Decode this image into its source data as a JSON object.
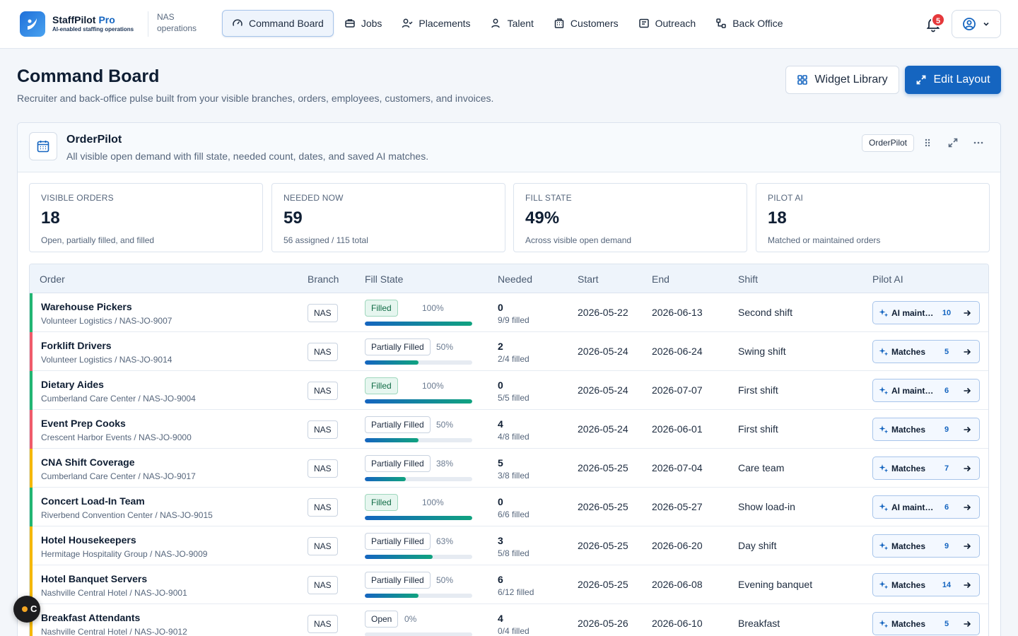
{
  "brand": {
    "name": "StaffPilot",
    "pro": "Pro",
    "tagline": "AI-enabled staffing operations"
  },
  "org": {
    "line1": "NAS",
    "line2": "operations"
  },
  "nav": [
    {
      "label": "Command Board",
      "icon": "gauge-icon"
    },
    {
      "label": "Jobs",
      "icon": "briefcase-icon"
    },
    {
      "label": "Placements",
      "icon": "user-check-icon"
    },
    {
      "label": "Talent",
      "icon": "users-icon"
    },
    {
      "label": "Customers",
      "icon": "building-icon"
    },
    {
      "label": "Outreach",
      "icon": "message-icon"
    },
    {
      "label": "Back Office",
      "icon": "workflow-icon"
    }
  ],
  "notifications": {
    "count": "5"
  },
  "page": {
    "title": "Command Board",
    "subtitle": "Recruiter and back-office pulse built from your visible branches, orders, employees, customers, and invoices.",
    "widget_library": "Widget Library",
    "edit_layout": "Edit Layout"
  },
  "widget": {
    "title": "OrderPilot",
    "subtitle": "All visible open demand with fill state, needed count, dates, and saved AI matches.",
    "tag": "OrderPilot"
  },
  "stats": [
    {
      "label": "VISIBLE ORDERS",
      "value": "18",
      "note": "Open, partially filled, and filled"
    },
    {
      "label": "NEEDED NOW",
      "value": "59",
      "note": "56 assigned / 115 total"
    },
    {
      "label": "FILL STATE",
      "value": "49%",
      "note": "Across visible open demand"
    },
    {
      "label": "PILOT AI",
      "value": "18",
      "note": "Matched or maintained orders"
    }
  ],
  "table": {
    "headers": [
      "Order",
      "Branch",
      "Fill State",
      "Needed",
      "Start",
      "End",
      "Shift",
      "Pilot AI"
    ],
    "rows": [
      {
        "title": "Warehouse Pickers",
        "sub": "Volunteer Logistics / NAS-JO-9007",
        "branch": "NAS",
        "state": "Filled",
        "pct": "100%",
        "fill": 1.0,
        "needed": "0",
        "needed_sub": "9/9 filled",
        "start": "2026-05-22",
        "end": "2026-06-13",
        "shift": "Second shift",
        "ai": "AI maintained",
        "ai_count": "10",
        "accent": "#22b573"
      },
      {
        "title": "Forklift Drivers",
        "sub": "Volunteer Logistics / NAS-JO-9014",
        "branch": "NAS",
        "state": "Partially Filled",
        "pct": "50%",
        "fill": 0.5,
        "needed": "2",
        "needed_sub": "2/4 filled",
        "start": "2026-05-24",
        "end": "2026-06-24",
        "shift": "Swing shift",
        "ai": "Matches",
        "ai_count": "5",
        "accent": "#ef5b6b"
      },
      {
        "title": "Dietary Aides",
        "sub": "Cumberland Care Center / NAS-JO-9004",
        "branch": "NAS",
        "state": "Filled",
        "pct": "100%",
        "fill": 1.0,
        "needed": "0",
        "needed_sub": "5/5 filled",
        "start": "2026-05-24",
        "end": "2026-07-07",
        "shift": "First shift",
        "ai": "AI maintained",
        "ai_count": "6",
        "accent": "#22b573"
      },
      {
        "title": "Event Prep Cooks",
        "sub": "Crescent Harbor Events / NAS-JO-9000",
        "branch": "NAS",
        "state": "Partially Filled",
        "pct": "50%",
        "fill": 0.5,
        "needed": "4",
        "needed_sub": "4/8 filled",
        "start": "2026-05-24",
        "end": "2026-06-01",
        "shift": "First shift",
        "ai": "Matches",
        "ai_count": "9",
        "accent": "#ef5b6b"
      },
      {
        "title": "CNA Shift Coverage",
        "sub": "Cumberland Care Center / NAS-JO-9017",
        "branch": "NAS",
        "state": "Partially Filled",
        "pct": "38%",
        "fill": 0.38,
        "needed": "5",
        "needed_sub": "3/8 filled",
        "start": "2026-05-25",
        "end": "2026-07-04",
        "shift": "Care team",
        "ai": "Matches",
        "ai_count": "7",
        "accent": "#f5b800"
      },
      {
        "title": "Concert Load-In Team",
        "sub": "Riverbend Convention Center / NAS-JO-9015",
        "branch": "NAS",
        "state": "Filled",
        "pct": "100%",
        "fill": 1.0,
        "needed": "0",
        "needed_sub": "6/6 filled",
        "start": "2026-05-25",
        "end": "2026-05-27",
        "shift": "Show load-in",
        "ai": "AI maintained",
        "ai_count": "6",
        "accent": "#22b573"
      },
      {
        "title": "Hotel Housekeepers",
        "sub": "Hermitage Hospitality Group / NAS-JO-9009",
        "branch": "NAS",
        "state": "Partially Filled",
        "pct": "63%",
        "fill": 0.63,
        "needed": "3",
        "needed_sub": "5/8 filled",
        "start": "2026-05-25",
        "end": "2026-06-20",
        "shift": "Day shift",
        "ai": "Matches",
        "ai_count": "9",
        "accent": "#f5b800"
      },
      {
        "title": "Hotel Banquet Servers",
        "sub": "Nashville Central Hotel / NAS-JO-9001",
        "branch": "NAS",
        "state": "Partially Filled",
        "pct": "50%",
        "fill": 0.5,
        "needed": "6",
        "needed_sub": "6/12 filled",
        "start": "2026-05-25",
        "end": "2026-06-08",
        "shift": "Evening banquet",
        "ai": "Matches",
        "ai_count": "14",
        "accent": "#f5b800"
      },
      {
        "title": "Breakfast Attendants",
        "sub": "Nashville Central Hotel / NAS-JO-9012",
        "branch": "NAS",
        "state": "Open",
        "pct": "0%",
        "fill": 0.0,
        "needed": "4",
        "needed_sub": "0/4 filled",
        "start": "2026-05-26",
        "end": "2026-06-10",
        "shift": "Breakfast",
        "ai": "Matches",
        "ai_count": "5",
        "accent": "#f5b800"
      }
    ]
  },
  "floating": {
    "label": "C"
  }
}
